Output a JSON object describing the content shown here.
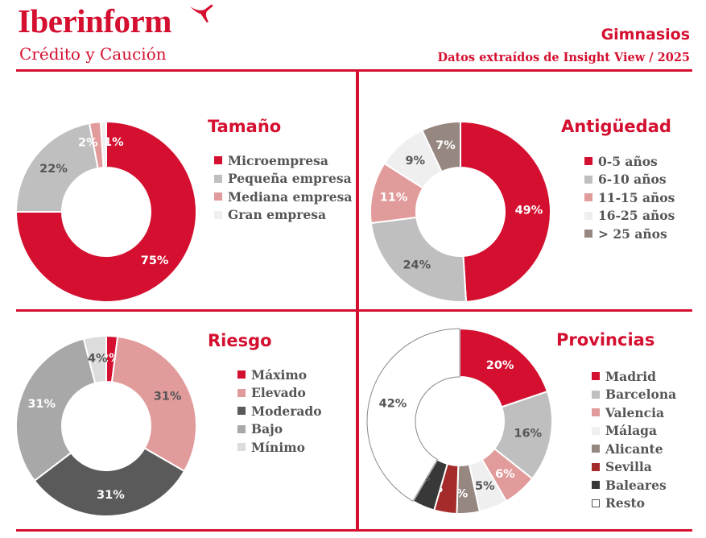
{
  "header": {
    "logo_name": "Iberinform",
    "logo_tagline": "Crédito y Caución",
    "title": "Gimnasios",
    "subtitle": "Datos extraídos de Insight View / 2025"
  },
  "colors": {
    "accent": "#d40f2f",
    "rule": "#d40f2f"
  },
  "chart_data": [
    {
      "type": "pie",
      "title": "Tamaño",
      "categories": [
        "Microempresa",
        "Pequeña empresa",
        "Mediana empresa",
        "Gran empresa"
      ],
      "values": [
        75,
        22,
        2,
        1
      ],
      "labels": [
        "75%",
        "22%",
        "2%",
        "1%"
      ],
      "colors": [
        "#d40f2f",
        "#bfbfbf",
        "#e29b9b",
        "#efefef"
      ],
      "label_colors": [
        "#ffffff",
        "#555555",
        "#ffffff",
        "#ffffff"
      ],
      "legend_placement": "right"
    },
    {
      "type": "pie",
      "title": "Antigüedad",
      "categories": [
        "0-5 años",
        "6-10 años",
        "11-15 años",
        "16-25 años",
        "> 25 años"
      ],
      "values": [
        49,
        24,
        11,
        9,
        7
      ],
      "labels": [
        "49%",
        "24%",
        "11%",
        "9%",
        "7%"
      ],
      "colors": [
        "#d40f2f",
        "#bfbfbf",
        "#e29b9b",
        "#efefef",
        "#968780"
      ],
      "label_colors": [
        "#ffffff",
        "#555555",
        "#ffffff",
        "#555555",
        "#ffffff"
      ],
      "legend_placement": "right"
    },
    {
      "type": "pie",
      "title": "Riesgo",
      "categories": [
        "Máximo",
        "Elevado",
        "Moderado",
        "Bajo",
        "Mínimo"
      ],
      "values": [
        2,
        31,
        31,
        31,
        4
      ],
      "labels": [
        "2%",
        "31%",
        "31%",
        "31%",
        "4%"
      ],
      "colors": [
        "#d40f2f",
        "#e29b9b",
        "#5a5a5a",
        "#a8a8a8",
        "#dcdcdc"
      ],
      "label_colors": [
        "#ffffff",
        "#555555",
        "#ffffff",
        "#ffffff",
        "#555555"
      ],
      "legend_placement": "right"
    },
    {
      "type": "pie",
      "title": "Provincias",
      "categories": [
        "Madrid",
        "Barcelona",
        "Valencia",
        "Málaga",
        "Alicante",
        "Sevilla",
        "Baleares",
        "Resto"
      ],
      "values": [
        20,
        16,
        6,
        5,
        4,
        4,
        4,
        42
      ],
      "labels": [
        "20%",
        "16%",
        "6%",
        "5%",
        "4%",
        "4%",
        "4%",
        "42%"
      ],
      "colors": [
        "#d40f2f",
        "#bfbfbf",
        "#e29b9b",
        "#efefef",
        "#968780",
        "#a52a2a",
        "#383838",
        "#ffffff"
      ],
      "label_colors": [
        "#ffffff",
        "#555555",
        "#ffffff",
        "#555555",
        "#ffffff",
        "#ffffff",
        "#555555",
        "#555555"
      ],
      "legend_placement": "right"
    }
  ]
}
